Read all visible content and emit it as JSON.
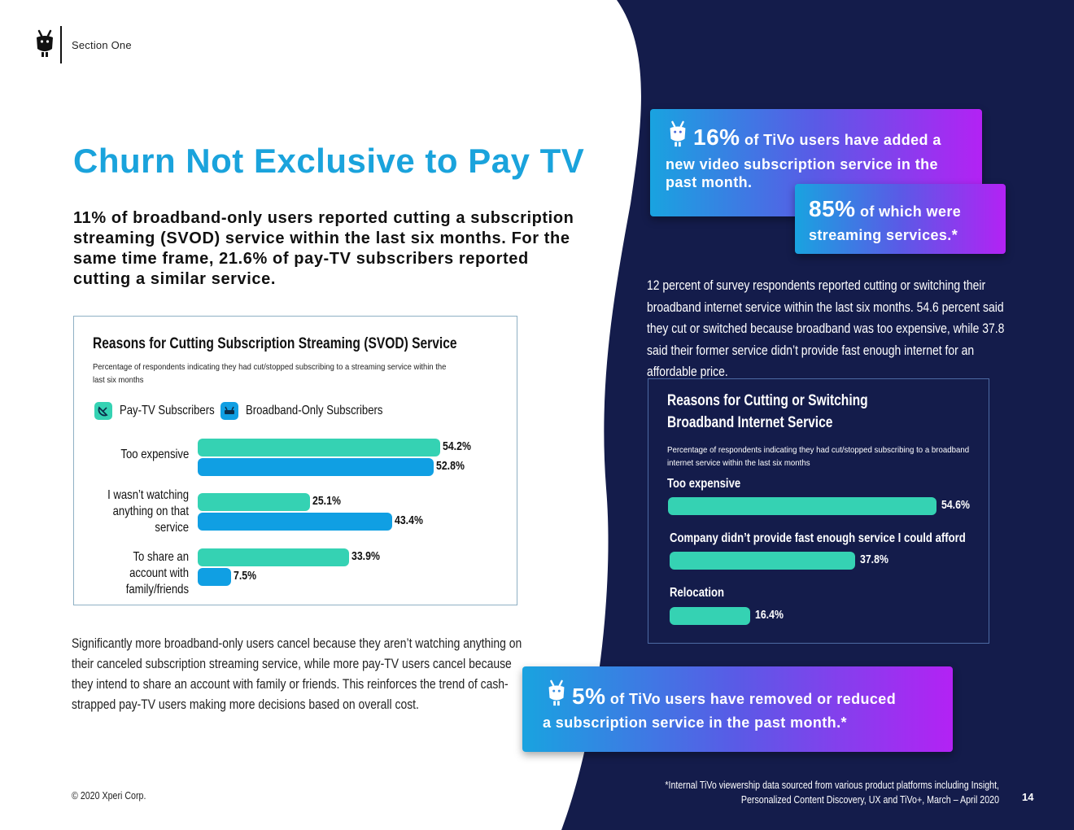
{
  "colors": {
    "navy": "#141c4b",
    "title_blue": "#1aa3dc",
    "teal": "#35d2b3",
    "blue": "#109fe3",
    "grad_start": "#19a3e0",
    "grad_end": "#b322f4"
  },
  "header": {
    "logo_icon": "tivo-logo-icon",
    "section": "Section One"
  },
  "title": "Churn Not Exclusive to Pay TV",
  "lead": "11% of broadband-only users reported cutting a subscription streaming (SVOD) service within the last six months. For the same time frame, 21.6% of pay-TV subscribers reported cutting a similar service.",
  "chart_data": [
    {
      "type": "bar",
      "orientation": "horizontal",
      "title": "Reasons for Cutting Subscription Streaming (SVOD) Service",
      "subtitle": "Percentage of respondents indicating they had cut/stopped subscribing to a streaming service within the last six months",
      "categories": [
        "Too expensive",
        "I wasn’t watching anything on that service",
        "To share an account with family/friends"
      ],
      "series": [
        {
          "name": "Pay-TV Subscribers",
          "values": [
            54.2,
            25.1,
            33.9
          ],
          "labels": [
            "54.2%",
            "25.1%",
            "33.9%"
          ],
          "color": "#35d2b3",
          "icon": "satellite-dish-icon"
        },
        {
          "name": "Broadband-Only Subscribers",
          "values": [
            52.8,
            43.4,
            7.5
          ],
          "labels": [
            "52.8%",
            "43.4%",
            "7.5%"
          ],
          "color": "#109fe3",
          "icon": "router-icon"
        }
      ],
      "xlim": [
        0,
        60
      ],
      "legend": "top-left"
    },
    {
      "type": "bar",
      "orientation": "horizontal",
      "title_lines": [
        "Reasons for Cutting or Switching",
        "Broadband Internet Service"
      ],
      "subtitle": "Percentage of respondents indicating they had cut/stopped subscribing to a broadband internet service within the last six months",
      "categories": [
        "Too expensive",
        "Company didn’t provide fast enough service I could afford",
        "Relocation"
      ],
      "series": [
        {
          "name": "Respondents",
          "values": [
            54.6,
            37.8,
            16.4
          ],
          "labels": [
            "54.6%",
            "37.8%",
            "16.4%"
          ],
          "color": "#35d2b3"
        }
      ],
      "xlim": [
        0,
        60
      ]
    }
  ],
  "body_text": "Significantly more broadband-only users cancel because they aren’t watching anything on their canceled subscription streaming service, while more pay-TV users cancel because they intend to share an account with family or friends. This reinforces the trend of cash-strapped pay-TV users making more decisions based on overall cost.",
  "callouts": {
    "c1": {
      "stat": "16%",
      "line1": " of TiVo users have added a",
      "line2": "new video subscription service in the",
      "line3": "past month."
    },
    "c2": {
      "stat": "85%",
      "line1": " of which were",
      "line2": "streaming services.*"
    },
    "c3": {
      "stat": "5%",
      "line1": " of TiVo users have removed or reduced",
      "line2": "a subscription service in the past month.*"
    }
  },
  "right_text": "12 percent of survey respondents reported cutting or switching their broadband internet service within the last six months. 54.6 percent said they cut or switched because broadband was too expensive, while 37.8 said their former service didn’t provide fast enough internet for an affordable price.",
  "footer": {
    "copyright": "© 2020 Xperi Corp.",
    "footnote_line1": "*Internal TiVo viewership data sourced from various product platforms including Insight,",
    "footnote_line2": "Personalized Content Discovery, UX and TiVo+,  March – April 2020",
    "page": "14"
  }
}
